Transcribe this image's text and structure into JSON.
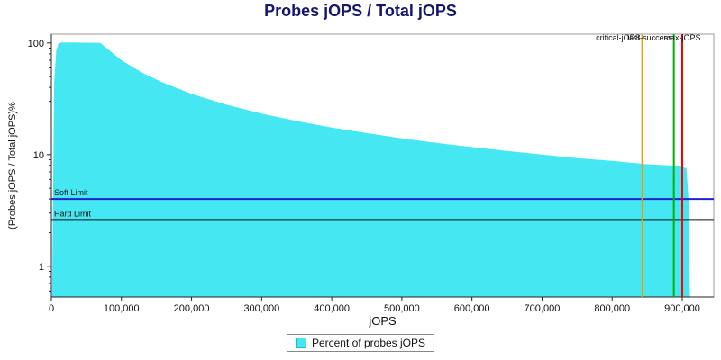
{
  "chart_data": {
    "type": "area",
    "title": "Probes jOPS / Total jOPS",
    "xlabel": "jOPS",
    "ylabel": "(Probes jOPS / Total jOPS)%",
    "xlim": [
      0,
      945000
    ],
    "ylim_log": [
      0.53,
      120
    ],
    "x_ticks": [
      {
        "value": 0,
        "label": "0"
      },
      {
        "value": 100000,
        "label": "100,000"
      },
      {
        "value": 200000,
        "label": "200,000"
      },
      {
        "value": 300000,
        "label": "300,000"
      },
      {
        "value": 400000,
        "label": "400,000"
      },
      {
        "value": 500000,
        "label": "500,000"
      },
      {
        "value": 600000,
        "label": "600,000"
      },
      {
        "value": 700000,
        "label": "700,000"
      },
      {
        "value": 800000,
        "label": "800,000"
      },
      {
        "value": 900000,
        "label": "900,000"
      }
    ],
    "y_ticks": [
      {
        "value": 1,
        "label": "1"
      },
      {
        "value": 10,
        "label": "10"
      },
      {
        "value": 100,
        "label": "100"
      }
    ],
    "series": [
      {
        "name": "Percent of probes jOPS",
        "color": "#45e8f2",
        "points": [
          [
            1000,
            0.53
          ],
          [
            4000,
            45
          ],
          [
            7000,
            85
          ],
          [
            10000,
            99
          ],
          [
            15000,
            101
          ],
          [
            30000,
            101
          ],
          [
            50000,
            100.5
          ],
          [
            70000,
            100
          ],
          [
            100000,
            70
          ],
          [
            130000,
            54
          ],
          [
            160000,
            44
          ],
          [
            200000,
            35
          ],
          [
            250000,
            28
          ],
          [
            300000,
            23.3
          ],
          [
            350000,
            20
          ],
          [
            400000,
            17.5
          ],
          [
            450000,
            15.6
          ],
          [
            500000,
            14
          ],
          [
            550000,
            12.7
          ],
          [
            600000,
            11.7
          ],
          [
            650000,
            10.8
          ],
          [
            700000,
            10
          ],
          [
            750000,
            9.3
          ],
          [
            800000,
            8.8
          ],
          [
            850000,
            8.2
          ],
          [
            880000,
            8.0
          ],
          [
            900000,
            7.8
          ],
          [
            906000,
            7.5
          ],
          [
            909000,
            4
          ],
          [
            911000,
            0.53
          ]
        ]
      }
    ],
    "h_lines": [
      {
        "label": "Soft Limit",
        "y": 4.0,
        "color": "#2222cc"
      },
      {
        "label": "Hard Limit",
        "y": 2.6,
        "color": "#111111"
      }
    ],
    "v_lines": [
      {
        "label": "critical-jOPS",
        "x": 843000,
        "color": "#e8a000",
        "anchor": "end"
      },
      {
        "label": "last-success",
        "x": 888000,
        "color": "#00b000",
        "anchor": "end"
      },
      {
        "label": "max-jOPS",
        "x": 900000,
        "color": "#ff0000",
        "anchor": "middle"
      }
    ],
    "legend": {
      "label": "Percent of probes jOPS"
    }
  }
}
